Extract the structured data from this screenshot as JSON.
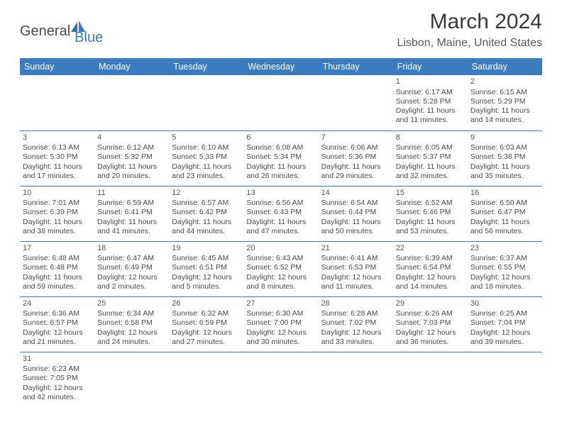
{
  "logo": {
    "part1": "General",
    "part2": "Blue"
  },
  "title": "March 2024",
  "location": "Lisbon, Maine, United States",
  "colors": {
    "header_bg": "#3b7cbf",
    "header_text": "#ffffff",
    "border": "#3b7cbf",
    "text": "#4a4a4a",
    "title_text": "#3a3a3a",
    "location_text": "#5a5a5a"
  },
  "day_headers": [
    "Sunday",
    "Monday",
    "Tuesday",
    "Wednesday",
    "Thursday",
    "Friday",
    "Saturday"
  ],
  "weeks": [
    [
      null,
      null,
      null,
      null,
      null,
      {
        "n": "1",
        "sr": "Sunrise: 6:17 AM",
        "ss": "Sunset: 5:28 PM",
        "d1": "Daylight: 11 hours",
        "d2": "and 11 minutes."
      },
      {
        "n": "2",
        "sr": "Sunrise: 6:15 AM",
        "ss": "Sunset: 5:29 PM",
        "d1": "Daylight: 11 hours",
        "d2": "and 14 minutes."
      }
    ],
    [
      {
        "n": "3",
        "sr": "Sunrise: 6:13 AM",
        "ss": "Sunset: 5:30 PM",
        "d1": "Daylight: 11 hours",
        "d2": "and 17 minutes."
      },
      {
        "n": "4",
        "sr": "Sunrise: 6:12 AM",
        "ss": "Sunset: 5:32 PM",
        "d1": "Daylight: 11 hours",
        "d2": "and 20 minutes."
      },
      {
        "n": "5",
        "sr": "Sunrise: 6:10 AM",
        "ss": "Sunset: 5:33 PM",
        "d1": "Daylight: 11 hours",
        "d2": "and 23 minutes."
      },
      {
        "n": "6",
        "sr": "Sunrise: 6:08 AM",
        "ss": "Sunset: 5:34 PM",
        "d1": "Daylight: 11 hours",
        "d2": "and 26 minutes."
      },
      {
        "n": "7",
        "sr": "Sunrise: 6:06 AM",
        "ss": "Sunset: 5:36 PM",
        "d1": "Daylight: 11 hours",
        "d2": "and 29 minutes."
      },
      {
        "n": "8",
        "sr": "Sunrise: 6:05 AM",
        "ss": "Sunset: 5:37 PM",
        "d1": "Daylight: 11 hours",
        "d2": "and 32 minutes."
      },
      {
        "n": "9",
        "sr": "Sunrise: 6:03 AM",
        "ss": "Sunset: 5:38 PM",
        "d1": "Daylight: 11 hours",
        "d2": "and 35 minutes."
      }
    ],
    [
      {
        "n": "10",
        "sr": "Sunrise: 7:01 AM",
        "ss": "Sunset: 6:39 PM",
        "d1": "Daylight: 11 hours",
        "d2": "and 38 minutes."
      },
      {
        "n": "11",
        "sr": "Sunrise: 6:59 AM",
        "ss": "Sunset: 6:41 PM",
        "d1": "Daylight: 11 hours",
        "d2": "and 41 minutes."
      },
      {
        "n": "12",
        "sr": "Sunrise: 6:57 AM",
        "ss": "Sunset: 6:42 PM",
        "d1": "Daylight: 11 hours",
        "d2": "and 44 minutes."
      },
      {
        "n": "13",
        "sr": "Sunrise: 6:56 AM",
        "ss": "Sunset: 6:43 PM",
        "d1": "Daylight: 11 hours",
        "d2": "and 47 minutes."
      },
      {
        "n": "14",
        "sr": "Sunrise: 6:54 AM",
        "ss": "Sunset: 6:44 PM",
        "d1": "Daylight: 11 hours",
        "d2": "and 50 minutes."
      },
      {
        "n": "15",
        "sr": "Sunrise: 6:52 AM",
        "ss": "Sunset: 6:46 PM",
        "d1": "Daylight: 11 hours",
        "d2": "and 53 minutes."
      },
      {
        "n": "16",
        "sr": "Sunrise: 6:50 AM",
        "ss": "Sunset: 6:47 PM",
        "d1": "Daylight: 11 hours",
        "d2": "and 56 minutes."
      }
    ],
    [
      {
        "n": "17",
        "sr": "Sunrise: 6:48 AM",
        "ss": "Sunset: 6:48 PM",
        "d1": "Daylight: 11 hours",
        "d2": "and 59 minutes."
      },
      {
        "n": "18",
        "sr": "Sunrise: 6:47 AM",
        "ss": "Sunset: 6:49 PM",
        "d1": "Daylight: 12 hours",
        "d2": "and 2 minutes."
      },
      {
        "n": "19",
        "sr": "Sunrise: 6:45 AM",
        "ss": "Sunset: 6:51 PM",
        "d1": "Daylight: 12 hours",
        "d2": "and 5 minutes."
      },
      {
        "n": "20",
        "sr": "Sunrise: 6:43 AM",
        "ss": "Sunset: 6:52 PM",
        "d1": "Daylight: 12 hours",
        "d2": "and 8 minutes."
      },
      {
        "n": "21",
        "sr": "Sunrise: 6:41 AM",
        "ss": "Sunset: 6:53 PM",
        "d1": "Daylight: 12 hours",
        "d2": "and 11 minutes."
      },
      {
        "n": "22",
        "sr": "Sunrise: 6:39 AM",
        "ss": "Sunset: 6:54 PM",
        "d1": "Daylight: 12 hours",
        "d2": "and 14 minutes."
      },
      {
        "n": "23",
        "sr": "Sunrise: 6:37 AM",
        "ss": "Sunset: 6:55 PM",
        "d1": "Daylight: 12 hours",
        "d2": "and 18 minutes."
      }
    ],
    [
      {
        "n": "24",
        "sr": "Sunrise: 6:36 AM",
        "ss": "Sunset: 6:57 PM",
        "d1": "Daylight: 12 hours",
        "d2": "and 21 minutes."
      },
      {
        "n": "25",
        "sr": "Sunrise: 6:34 AM",
        "ss": "Sunset: 6:58 PM",
        "d1": "Daylight: 12 hours",
        "d2": "and 24 minutes."
      },
      {
        "n": "26",
        "sr": "Sunrise: 6:32 AM",
        "ss": "Sunset: 6:59 PM",
        "d1": "Daylight: 12 hours",
        "d2": "and 27 minutes."
      },
      {
        "n": "27",
        "sr": "Sunrise: 6:30 AM",
        "ss": "Sunset: 7:00 PM",
        "d1": "Daylight: 12 hours",
        "d2": "and 30 minutes."
      },
      {
        "n": "28",
        "sr": "Sunrise: 6:28 AM",
        "ss": "Sunset: 7:02 PM",
        "d1": "Daylight: 12 hours",
        "d2": "and 33 minutes."
      },
      {
        "n": "29",
        "sr": "Sunrise: 6:26 AM",
        "ss": "Sunset: 7:03 PM",
        "d1": "Daylight: 12 hours",
        "d2": "and 36 minutes."
      },
      {
        "n": "30",
        "sr": "Sunrise: 6:25 AM",
        "ss": "Sunset: 7:04 PM",
        "d1": "Daylight: 12 hours",
        "d2": "and 39 minutes."
      }
    ],
    [
      {
        "n": "31",
        "sr": "Sunrise: 6:23 AM",
        "ss": "Sunset: 7:05 PM",
        "d1": "Daylight: 12 hours",
        "d2": "and 42 minutes."
      },
      null,
      null,
      null,
      null,
      null,
      null
    ]
  ]
}
